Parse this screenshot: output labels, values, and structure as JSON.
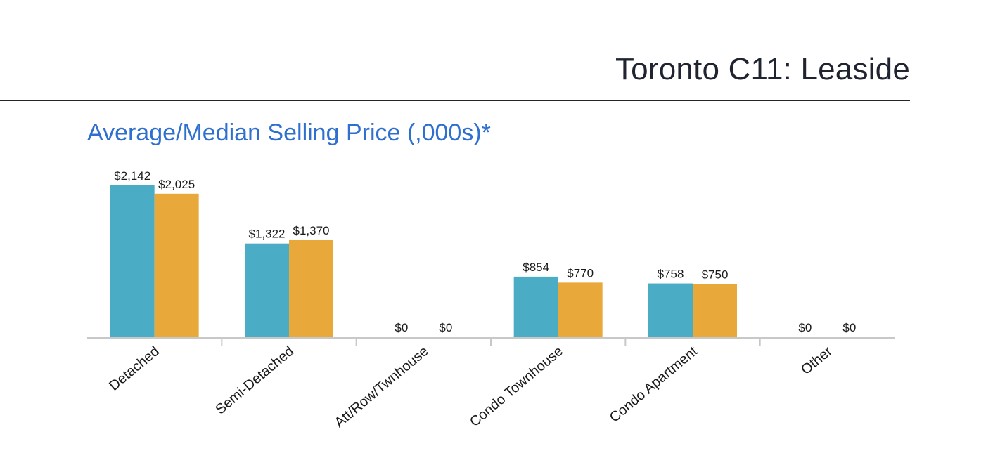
{
  "header": {
    "title": "Toronto C11: Leaside"
  },
  "chart_data": {
    "type": "bar",
    "title": "Average/Median Selling Price (,000s)*",
    "categories": [
      "Detached",
      "Semi-Detached",
      "Att/Row/Twnhouse",
      "Condo Townhouse",
      "Condo Apartment",
      "Other"
    ],
    "series": [
      {
        "color": "#4bacc6",
        "values": [
          2142,
          1322,
          0,
          854,
          758,
          0
        ]
      },
      {
        "color": "#e8a93a",
        "values": [
          2025,
          1370,
          0,
          770,
          750,
          0
        ]
      }
    ],
    "data_labels": [
      [
        "$2,142",
        "$1,322",
        "$0",
        "$854",
        "$758",
        "$0"
      ],
      [
        "$2,025",
        "$1,370",
        "$0",
        "$770",
        "$750",
        "$0"
      ]
    ],
    "ylim": [
      0,
      2142
    ],
    "grid": false,
    "legend": "none"
  }
}
